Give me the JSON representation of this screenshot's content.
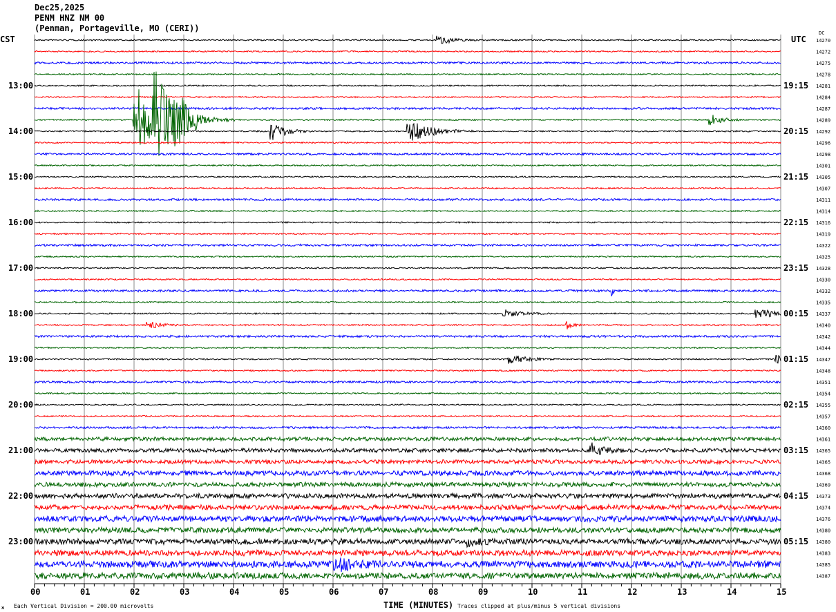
{
  "header": {
    "date": "Dec25,2025",
    "channel": "PENM HNZ NM 00",
    "location": "(Penman, Portageville, MO (CERI))"
  },
  "chart_data": {
    "type": "line",
    "subtype": "helicorder",
    "left_timezone": "CST",
    "right_timezone": "UTC",
    "dc_label": "DC",
    "xlabel": "TIME (MINUTES)",
    "xlim": [
      0,
      15
    ],
    "x_ticks": [
      "00",
      "01",
      "02",
      "03",
      "04",
      "05",
      "06",
      "07",
      "08",
      "09",
      "10",
      "11",
      "12",
      "13",
      "14",
      "15"
    ],
    "left_hour_labels": [
      "13:00",
      "14:00",
      "15:00",
      "16:00",
      "17:00",
      "18:00",
      "19:00",
      "20:00",
      "21:00",
      "22:00",
      "23:00"
    ],
    "right_hour_labels": [
      "19:15",
      "20:15",
      "21:15",
      "22:15",
      "23:15",
      "00:15",
      "01:15",
      "02:15",
      "03:15",
      "04:15",
      "05:15"
    ],
    "trace_colors": [
      "#000000",
      "#ff0000",
      "#0000ff",
      "#006400"
    ],
    "dc_values": [
      14270,
      14272,
      14275,
      14278,
      14281,
      14284,
      14287,
      14289,
      14292,
      14296,
      14298,
      14301,
      14305,
      14307,
      14311,
      14314,
      14316,
      14319,
      14322,
      14325,
      14328,
      14330,
      14332,
      14335,
      14337,
      14340,
      14342,
      14344,
      14347,
      14348,
      14351,
      14354,
      14355,
      14357,
      14360,
      14361,
      14365,
      14365,
      14368,
      14369,
      14373,
      14374,
      14376,
      14380,
      14380,
      14383,
      14385,
      14387
    ],
    "scale_note": "Each Vertical Division =  200.00 microvolts",
    "clip_note": "Traces clipped at plus/minus 5 vertical divisions",
    "grid": true
  }
}
